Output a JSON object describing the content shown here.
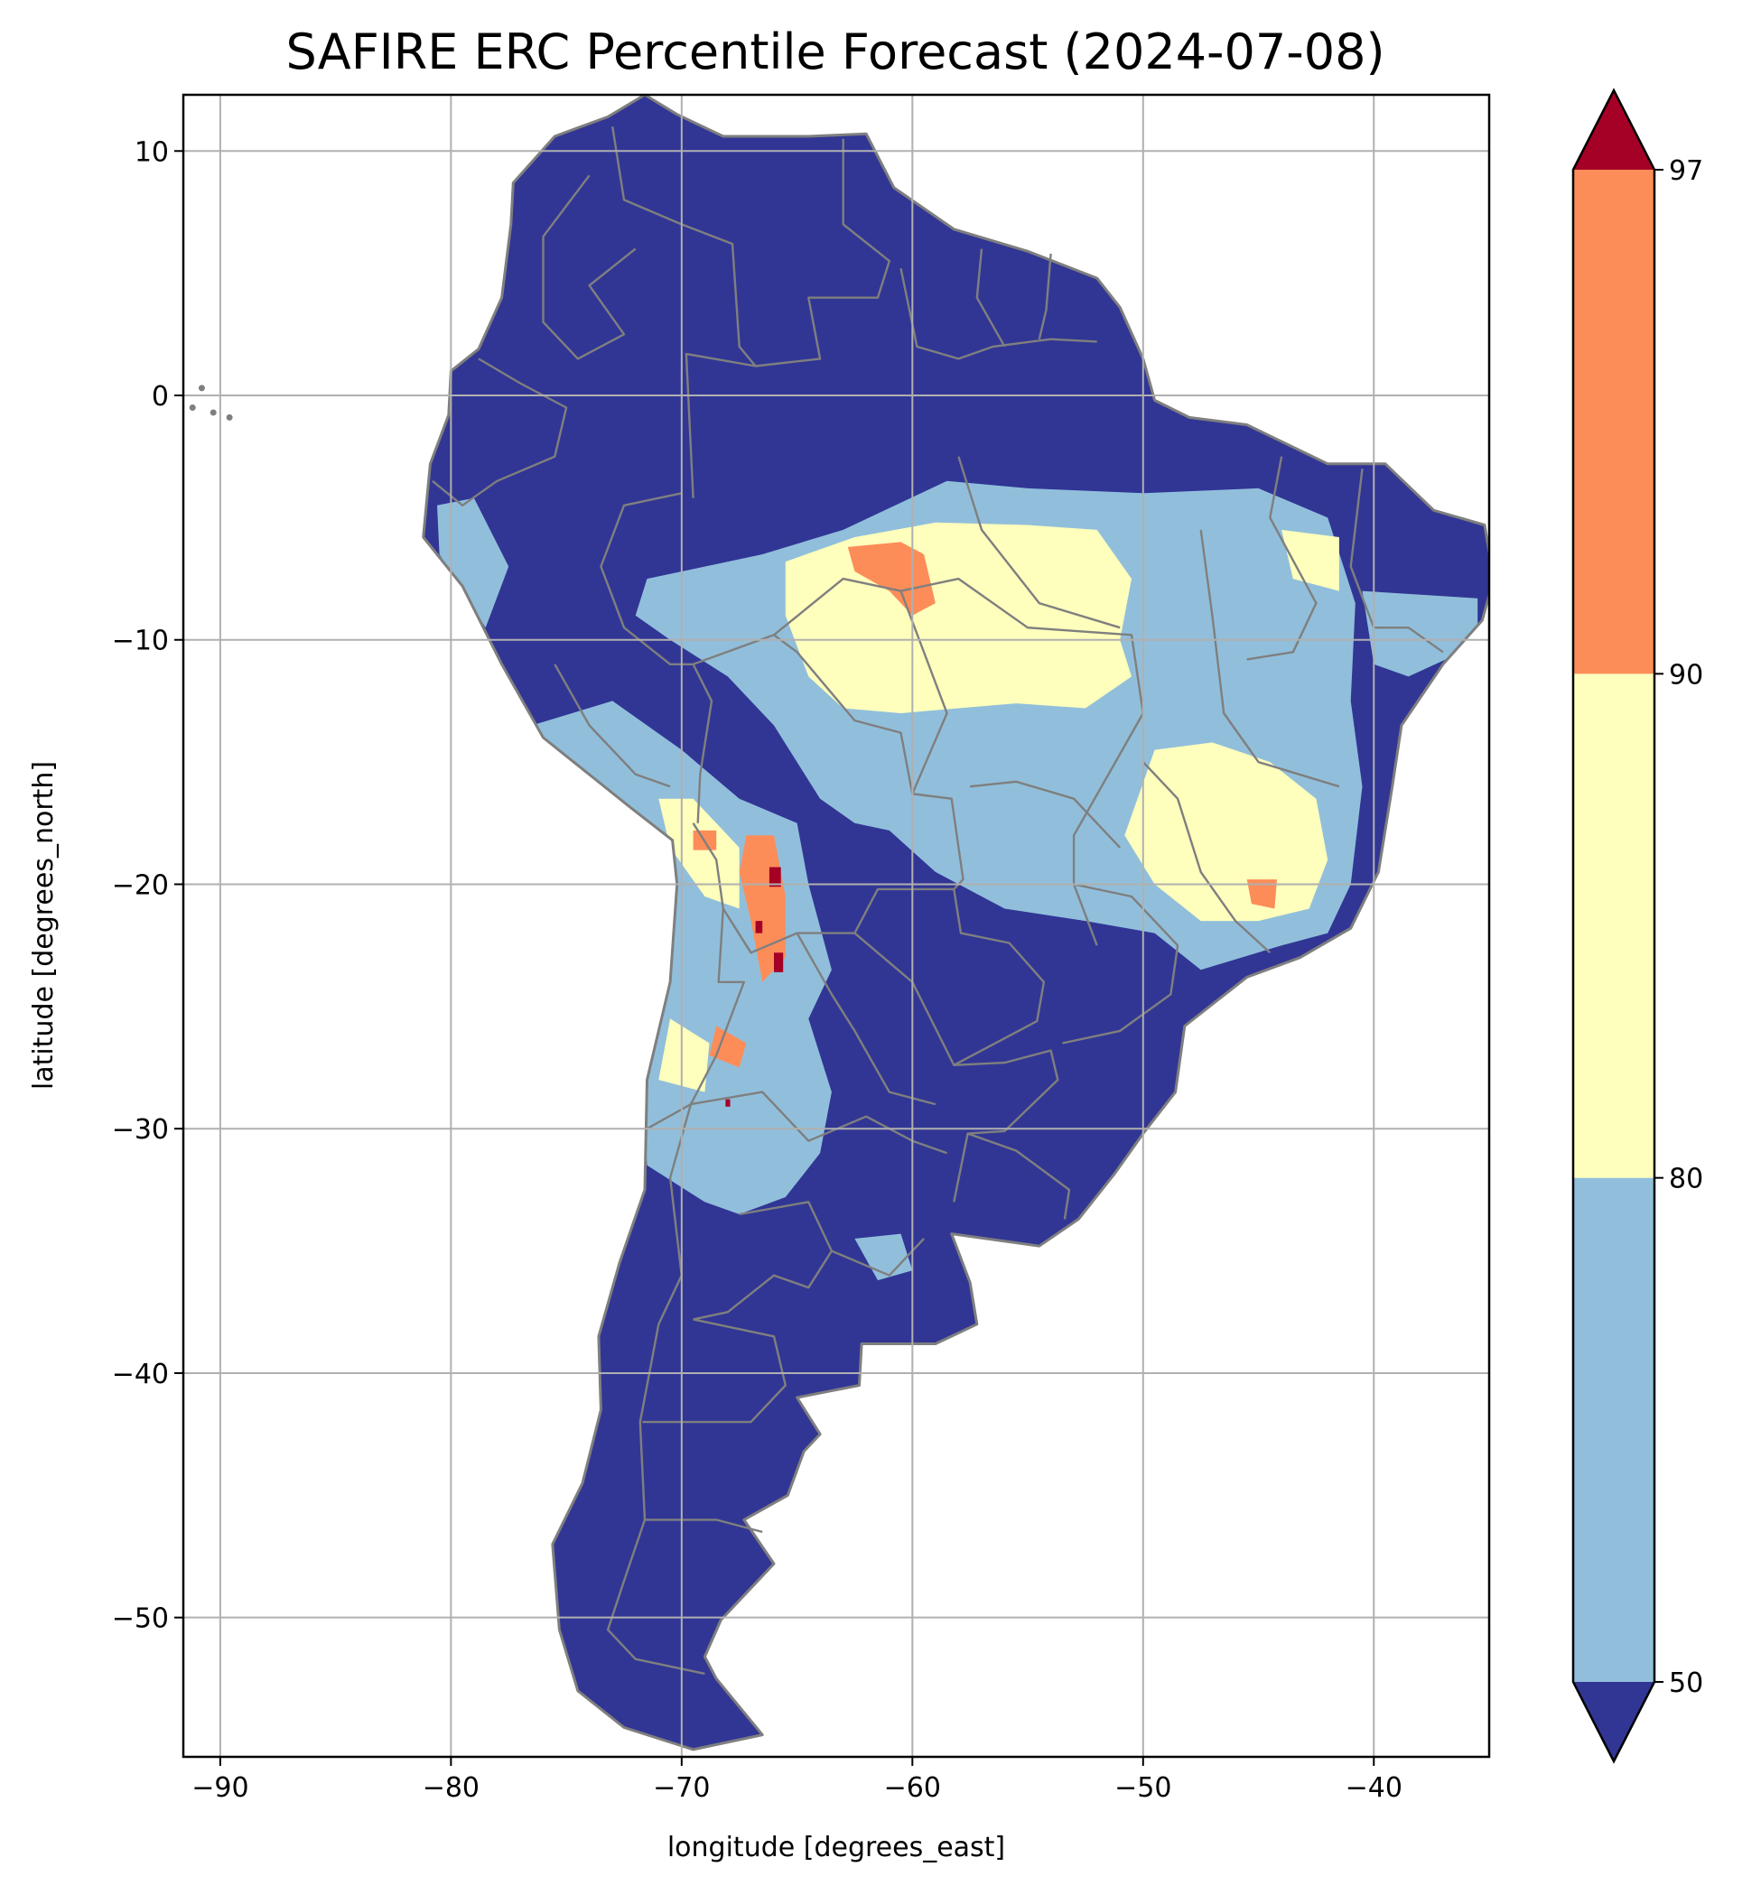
{
  "chart_data": {
    "type": "heatmap",
    "title": "SAFIRE ERC Percentile Forecast (2024-07-08)",
    "xlabel": "longitude [degrees_east]",
    "ylabel": "latitude [degrees_north]",
    "xlim": [
      -91.6,
      -35.0
    ],
    "ylim": [
      -55.7,
      12.3
    ],
    "x_ticks": [
      -90,
      -80,
      -70,
      -60,
      -50,
      -40
    ],
    "x_tick_labels": [
      "−90",
      "−80",
      "−70",
      "−60",
      "−50",
      "−40"
    ],
    "y_ticks": [
      10,
      0,
      -10,
      -20,
      -30,
      -40,
      -50
    ],
    "y_tick_labels": [
      "10",
      "0",
      "−10",
      "−20",
      "−30",
      "−40",
      "−50"
    ],
    "grid": true,
    "colorbar": {
      "boundaries": [
        50,
        80,
        90,
        97
      ],
      "tick_labels": [
        "50",
        "80",
        "90",
        "97"
      ],
      "extend": "both",
      "colors": {
        "under": "#313695",
        "50-80": "#91bfdb",
        "80-90": "#fefebd",
        "90-97": "#fc8d59",
        "over": "#a50026"
      }
    },
    "regions": [
      {
        "category": "below 50",
        "color": "#313695",
        "description": "continent base"
      },
      {
        "category": "50-80",
        "color": "#91bfdb"
      },
      {
        "category": "80-90",
        "color": "#fefebd"
      },
      {
        "category": "90-97",
        "color": "#fc8d59"
      },
      {
        "category": "above 97",
        "color": "#a50026"
      }
    ]
  },
  "colors": {
    "border_lines": "#7f7f7f",
    "grid_lines": "#b0b0b0"
  }
}
